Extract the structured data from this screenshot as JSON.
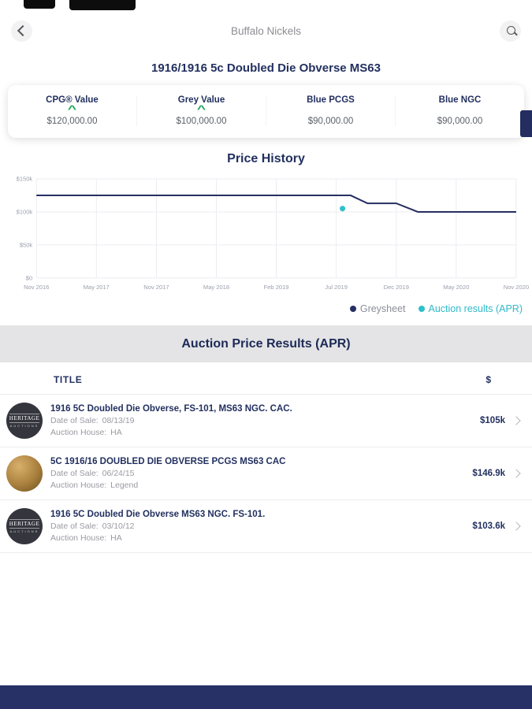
{
  "header": {
    "title": "Buffalo Nickels"
  },
  "coin": {
    "title": "1916/1916 5c Doubled Die Obverse MS63"
  },
  "values": {
    "items": [
      {
        "label": "CPG® Value",
        "trend": "^",
        "value": "$120,000.00"
      },
      {
        "label": "Grey Value",
        "trend": "^",
        "value": "$100,000.00"
      },
      {
        "label": "Blue PCGS",
        "trend": "",
        "value": "$90,000.00"
      },
      {
        "label": "Blue NGC",
        "trend": "",
        "value": "$90,000.00"
      }
    ]
  },
  "price_history": {
    "title": "Price History"
  },
  "chart_data": {
    "type": "line",
    "title": "Price History",
    "ylim": [
      0,
      150000
    ],
    "grid": true,
    "legend_position": "bottom-right",
    "y_ticks": [
      {
        "value": 0,
        "label": "$0"
      },
      {
        "value": 50000,
        "label": "$50k"
      },
      {
        "value": 100000,
        "label": "$100k"
      },
      {
        "value": 150000,
        "label": "$150k"
      }
    ],
    "x_ticks": [
      "Nov 2016",
      "May 2017",
      "Nov 2017",
      "May 2018",
      "Feb 2019",
      "Jul 2019",
      "Dec 2019",
      "May 2020",
      "Nov 2020"
    ],
    "series": [
      {
        "name": "Greysheet",
        "color": "#262f63",
        "points": [
          [
            0,
            125000
          ],
          [
            0.655,
            125000
          ],
          [
            0.69,
            113000
          ],
          [
            0.75,
            113000
          ],
          [
            0.795,
            100000
          ],
          [
            1,
            100000
          ]
        ]
      }
    ],
    "markers": [
      {
        "name": "Auction results (APR)",
        "color": "#2fc0c9",
        "x": 0.638,
        "y": 105000
      }
    ]
  },
  "legend": {
    "items": [
      {
        "label": "Greysheet",
        "color": "#262f63",
        "text_color": "#8b8f99"
      },
      {
        "label": "Auction results (APR)",
        "color": "#2fc0c9",
        "text_color": "#2fb9c9"
      }
    ]
  },
  "apr": {
    "title": "Auction Price Results (APR)",
    "col_title": "TITLE",
    "col_price": "$",
    "rows": [
      {
        "avatar": "heritage-auctions-logo",
        "logo_line1": "HERITAGE",
        "logo_line2": "AUCTIONS",
        "title": "1916 5C Doubled Die Obverse, FS-101, MS63 NGC. CAC.",
        "date_label": "Date of Sale:",
        "date_value": "08/13/19",
        "house_label": "Auction House:",
        "house_value": "HA",
        "price": "$105k"
      },
      {
        "avatar": "coin-photo",
        "logo_line1": "",
        "logo_line2": "",
        "title": "5C 1916/16 DOUBLED DIE OBVERSE PCGS MS63 CAC",
        "date_label": "Date of Sale:",
        "date_value": "06/24/15",
        "house_label": "Auction House:",
        "house_value": "Legend",
        "price": "$146.9k"
      },
      {
        "avatar": "heritage-auctions-logo",
        "logo_line1": "HERITAGE",
        "logo_line2": "AUCTIONS",
        "title": "1916 5C Doubled Die Obverse MS63 NGC. FS-101.",
        "date_label": "Date of Sale:",
        "date_value": "03/10/12",
        "house_label": "Auction House:",
        "house_value": "HA",
        "price": "$103.6k"
      }
    ]
  }
}
